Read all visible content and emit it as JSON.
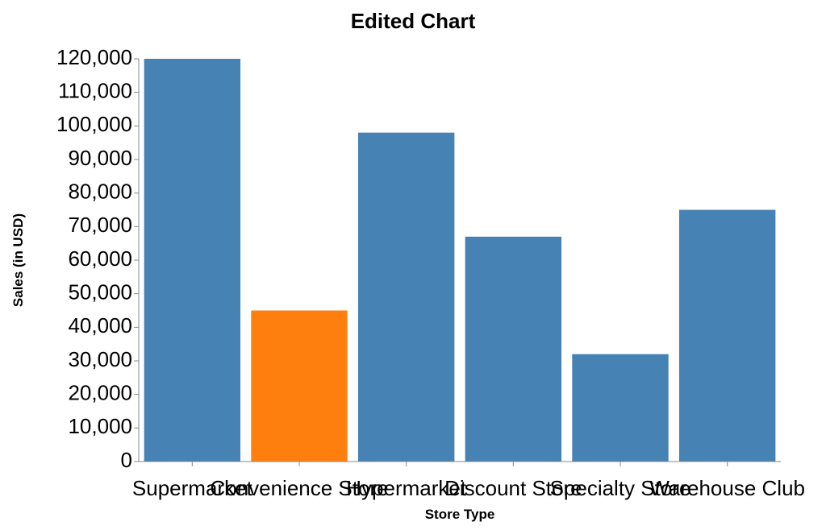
{
  "chart_data": {
    "type": "bar",
    "title": "Edited Chart",
    "xlabel": "Store Type",
    "ylabel": "Sales (in USD)",
    "categories": [
      "Supermarket",
      "Convenience Store",
      "Hypermarket",
      "Discount Store",
      "Specialty Store",
      "Warehouse Club"
    ],
    "values": [
      120000,
      45000,
      98000,
      67000,
      32000,
      75000
    ],
    "ylim": [
      0,
      120000
    ],
    "yticks": [
      0,
      10000,
      20000,
      30000,
      40000,
      50000,
      60000,
      70000,
      80000,
      90000,
      100000,
      110000,
      120000
    ],
    "ytick_labels": [
      "0",
      "10,000",
      "20,000",
      "30,000",
      "40,000",
      "50,000",
      "60,000",
      "70,000",
      "80,000",
      "90,000",
      "100,000",
      "110,000",
      "120,000"
    ],
    "grid": false,
    "colors": {
      "default": "#4682b4",
      "highlight": "#ff7f0e"
    },
    "highlighted_category": "Convenience Store"
  }
}
